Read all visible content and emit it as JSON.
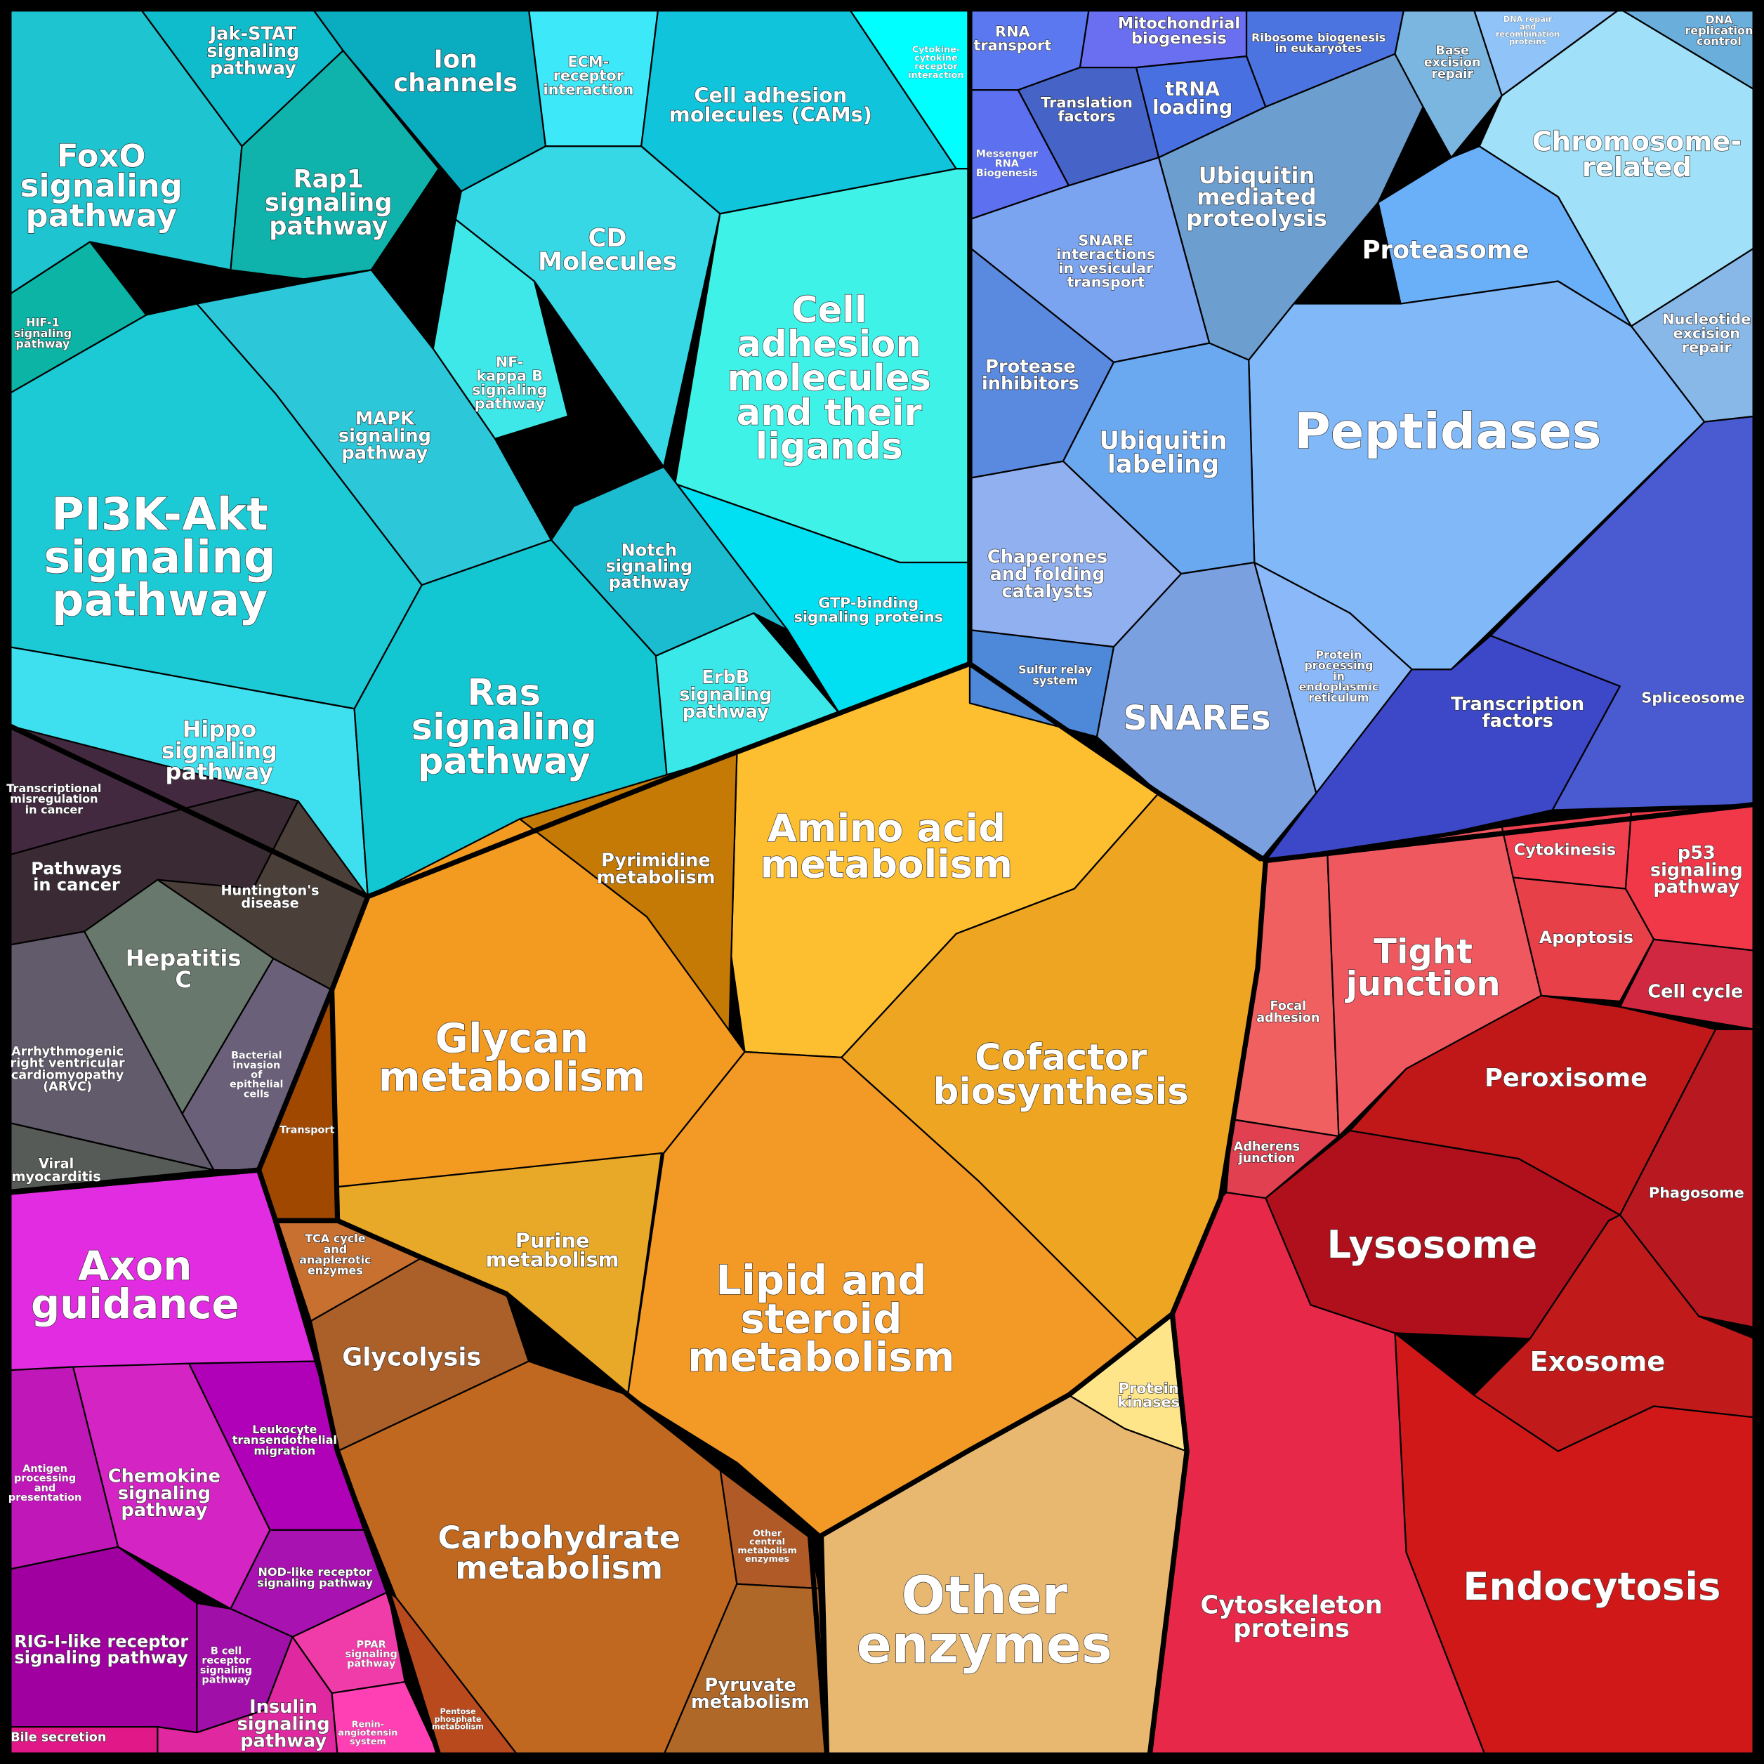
{
  "regions": {
    "foxo": {
      "label": [
        "FoxO",
        "signaling",
        "pathway"
      ],
      "color": "#1ec4cf"
    },
    "jakstat": {
      "label": [
        "Jak-STAT",
        "signaling",
        "pathway"
      ],
      "color": "#0fbccc"
    },
    "rap1": {
      "label": [
        "Rap1",
        "signaling",
        "pathway"
      ],
      "color": "#10b2ac"
    },
    "hif1": {
      "label": [
        "HIF-1",
        "signaling",
        "pathway"
      ],
      "color": "#0cb4a6"
    },
    "pi3k": {
      "label": [
        "PI3K-Akt",
        "signaling",
        "pathway"
      ],
      "color": "#1ccad6"
    },
    "hippo": {
      "label": [
        "Hippo",
        "signaling",
        "pathway"
      ],
      "color": "#3ee0f0"
    },
    "mapk": {
      "label": [
        "MAPK",
        "signaling",
        "pathway"
      ],
      "color": "#2cc8da"
    },
    "nfkb": {
      "label": [
        "NF-",
        "kappa B",
        "signaling",
        "pathway"
      ],
      "color": "#3ee8e8"
    },
    "ion": {
      "label": [
        "Ion",
        "channels"
      ],
      "color": "#0aacbf"
    },
    "ecm": {
      "label": [
        "ECM-",
        "receptor",
        "interaction"
      ],
      "color": "#3de8f8"
    },
    "cams": {
      "label": [
        "Cell adhesion",
        "molecules (CAMs)"
      ],
      "color": "#10c4dc"
    },
    "cytokine": {
      "label": [
        "Cytokine-",
        "cytokine",
        "receptor",
        "interaction"
      ],
      "color": "#00ffff"
    },
    "cd": {
      "label": [
        "CD",
        "Molecules"
      ],
      "color": "#36d8e6"
    },
    "ligands": {
      "label": [
        "Cell",
        "adhesion",
        "molecules",
        "and their",
        "ligands"
      ],
      "color": "#3ff2e8"
    },
    "gtp": {
      "label": [
        "GTP-binding",
        "signaling proteins"
      ],
      "color": "#00e0f2"
    },
    "notch": {
      "label": [
        "Notch",
        "signaling",
        "pathway"
      ],
      "color": "#1cbcd0"
    },
    "ras": {
      "label": [
        "Ras",
        "signaling",
        "pathway"
      ],
      "color": "#12c6d2"
    },
    "erbb": {
      "label": [
        "ErbB",
        "signaling",
        "pathway"
      ],
      "color": "#3ae8ea"
    },
    "transcmis": {
      "label": [
        "Transcriptional",
        "misregulation",
        "in cancer"
      ],
      "color": "#43293f"
    },
    "cancer": {
      "label": [
        "Pathways",
        "in cancer"
      ],
      "color": "#3a2a33"
    },
    "huntington": {
      "label": [
        "Huntington's",
        "disease"
      ],
      "color": "#4b4039"
    },
    "hepc": {
      "label": [
        "Hepatitis",
        "C"
      ],
      "color": "#68786c"
    },
    "bacterial": {
      "label": [
        "Bacterial",
        "invasion",
        "of",
        "epithelial",
        "cells"
      ],
      "color": "#6a607a"
    },
    "arvc": {
      "label": [
        "Arrhythmogenic",
        "right ventricular",
        "cardiomyopathy",
        "(ARVC)"
      ],
      "color": "#625b6b"
    },
    "viral": {
      "label": [
        "Viral",
        "myocarditis"
      ],
      "color": "#575b57"
    },
    "axon": {
      "label": [
        "Axon",
        "guidance"
      ],
      "color": "#e22ce2"
    },
    "antigen": {
      "label": [
        "Antigen",
        "processing",
        "and",
        "presentation"
      ],
      "color": "#c018b8"
    },
    "chemokine": {
      "label": [
        "Chemokine",
        "signaling",
        "pathway"
      ],
      "color": "#d424c4"
    },
    "leukocyte": {
      "label": [
        "Leukocyte",
        "transendothelial",
        "migration"
      ],
      "color": "#b000b8"
    },
    "nod": {
      "label": [
        "NOD-like receptor",
        "signaling pathway"
      ],
      "color": "#a812b0"
    },
    "rig": {
      "label": [
        "RIG-I-like receptor",
        "signaling pathway"
      ],
      "color": "#a000a0"
    },
    "bcell": {
      "label": [
        "B cell",
        "receptor",
        "signaling",
        "pathway"
      ],
      "color": "#a010a8"
    },
    "insulin": {
      "label": [
        "Insulin",
        "signaling",
        "pathway"
      ],
      "color": "#e028a0"
    },
    "ppar": {
      "label": [
        "PPAR",
        "signaling",
        "pathway"
      ],
      "color": "#f03ca8"
    },
    "renin": {
      "label": [
        "Renin-",
        "angiotensin",
        "system"
      ],
      "color": "#ff40b4"
    },
    "bile": {
      "label": [
        "Bile secretion"
      ],
      "color": "#e01888"
    },
    "amino": {
      "label": [
        "Amino acid",
        "metabolism"
      ],
      "color": "#fdbe30"
    },
    "pyrimidine": {
      "label": [
        "Pyrimidine",
        "metabolism"
      ],
      "color": "#c57a05"
    },
    "glycan": {
      "label": [
        "Glycan",
        "metabolism"
      ],
      "color": "#f39a20"
    },
    "cofactor": {
      "label": [
        "Cofactor",
        "biosynthesis"
      ],
      "color": "#eea622"
    },
    "lipid": {
      "label": [
        "Lipid and",
        "steroid",
        "metabolism"
      ],
      "color": "#f29a25"
    },
    "purine": {
      "label": [
        "Purine",
        "metabolism"
      ],
      "color": "#e8a828"
    },
    "transport": {
      "label": [
        "Transport"
      ],
      "color": "#a04800"
    },
    "tca": {
      "label": [
        "TCA cycle",
        "and",
        "anaplerotic",
        "enzymes"
      ],
      "color": "#c87030"
    },
    "glycolysis": {
      "label": [
        "Glycolysis"
      ],
      "color": "#aa6028"
    },
    "carbohydrate": {
      "label": [
        "Carbohydrate",
        "metabolism"
      ],
      "color": "#c06820"
    },
    "othercentral": {
      "label": [
        "Other",
        "central",
        "metabolism",
        "enzymes"
      ],
      "color": "#b05a28"
    },
    "pyruvate": {
      "label": [
        "Pyruvate",
        "metabolism"
      ],
      "color": "#b06828"
    },
    "pentose": {
      "label": [
        "Pentose",
        "phosphate",
        "metabolism"
      ],
      "color": "#b84a1e"
    },
    "otherenz": {
      "label": [
        "Other",
        "enzymes"
      ],
      "color": "#e8b870"
    },
    "kinases": {
      "label": [
        "Protein",
        "kinases"
      ],
      "color": "#ffe58a"
    },
    "rnatransport": {
      "label": [
        "RNA",
        "transport"
      ],
      "color": "#5c78f0"
    },
    "mito": {
      "label": [
        "Mitochondrial",
        "biogenesis"
      ],
      "color": "#6a6ef0"
    },
    "ribosome": {
      "label": [
        "Ribosome biogenesis",
        "in eukaryotes"
      ],
      "color": "#4c74e0"
    },
    "translation": {
      "label": [
        "Translation",
        "factors"
      ],
      "color": "#4664c8"
    },
    "trna": {
      "label": [
        "tRNA",
        "loading"
      ],
      "color": "#4870e0"
    },
    "mrna": {
      "label": [
        "Messenger",
        "RNA",
        "Biogenesis"
      ],
      "color": "#5c70f0"
    },
    "ubimed": {
      "label": [
        "Ubiquitin",
        "mediated",
        "proteolysis"
      ],
      "color": "#6c9ed0"
    },
    "baseexc": {
      "label": [
        "Base",
        "excision",
        "repair"
      ],
      "color": "#7ab6e0"
    },
    "dnarepair": {
      "label": [
        "DNA repair",
        "and",
        "recombination",
        "proteins"
      ],
      "color": "#90c4f8"
    },
    "dnarep": {
      "label": [
        "DNA",
        "replication",
        "control"
      ],
      "color": "#6aaedc"
    },
    "chromosome": {
      "label": [
        "Chromosome-",
        "related"
      ],
      "color": "#a0e0f8"
    },
    "nucexc": {
      "label": [
        "Nucleotide",
        "excision",
        "repair"
      ],
      "color": "#88b8e8"
    },
    "proteasome": {
      "label": [
        "Proteasome"
      ],
      "color": "#6ab0f8"
    },
    "peptidases": {
      "label": [
        "Peptidases"
      ],
      "color": "#80b8f8"
    },
    "snareint": {
      "label": [
        "SNARE",
        "interactions",
        "in vesicular",
        "transport"
      ],
      "color": "#7aa4f0"
    },
    "protinh": {
      "label": [
        "Protease",
        "inhibitors"
      ],
      "color": "#5a8ae0"
    },
    "ubilab": {
      "label": [
        "Ubiquitin",
        "labeling"
      ],
      "color": "#6aa8f0"
    },
    "chaperones": {
      "label": [
        "Chaperones",
        "and folding",
        "catalysts"
      ],
      "color": "#90b0f0"
    },
    "sulfur": {
      "label": [
        "Sulfur relay",
        "system"
      ],
      "color": "#4e88d8"
    },
    "snares": {
      "label": [
        "SNAREs"
      ],
      "color": "#7aa0e0"
    },
    "protproc": {
      "label": [
        "Protein",
        "processing",
        "in",
        "endoplasmic",
        "reticulum"
      ],
      "color": "#8ab8f8"
    },
    "transfac": {
      "label": [
        "Transcription",
        "factors"
      ],
      "color": "#3c48c8"
    },
    "spliceosome": {
      "label": [
        "Spliceosome"
      ],
      "color": "#4a5ad0"
    },
    "focal": {
      "label": [
        "Focal",
        "adhesion"
      ],
      "color": "#f06060"
    },
    "tight": {
      "label": [
        "Tight",
        "junction"
      ],
      "color": "#f05860"
    },
    "cytokinesis": {
      "label": [
        "Cytokinesis"
      ],
      "color": "#f04050"
    },
    "p53": {
      "label": [
        "p53",
        "signaling",
        "pathway"
      ],
      "color": "#f03848"
    },
    "apoptosis": {
      "label": [
        "Apoptosis"
      ],
      "color": "#e84048"
    },
    "cellcycle": {
      "label": [
        "Cell cycle"
      ],
      "color": "#d02840"
    },
    "adherens": {
      "label": [
        "Adherens",
        "junction"
      ],
      "color": "#e04050"
    },
    "peroxisome": {
      "label": [
        "Peroxisome"
      ],
      "color": "#c01818"
    },
    "phagosome": {
      "label": [
        "Phagosome"
      ],
      "color": "#b81820"
    },
    "lysosome": {
      "label": [
        "Lysosome"
      ],
      "color": "#b0101c"
    },
    "exosome": {
      "label": [
        "Exosome"
      ],
      "color": "#c01a1a"
    },
    "endocytosis": {
      "label": [
        "Endocytosis"
      ],
      "color": "#d01818"
    },
    "cytoskeleton": {
      "label": [
        "Cytoskeleton",
        "proteins"
      ],
      "color": "#e82848"
    }
  }
}
